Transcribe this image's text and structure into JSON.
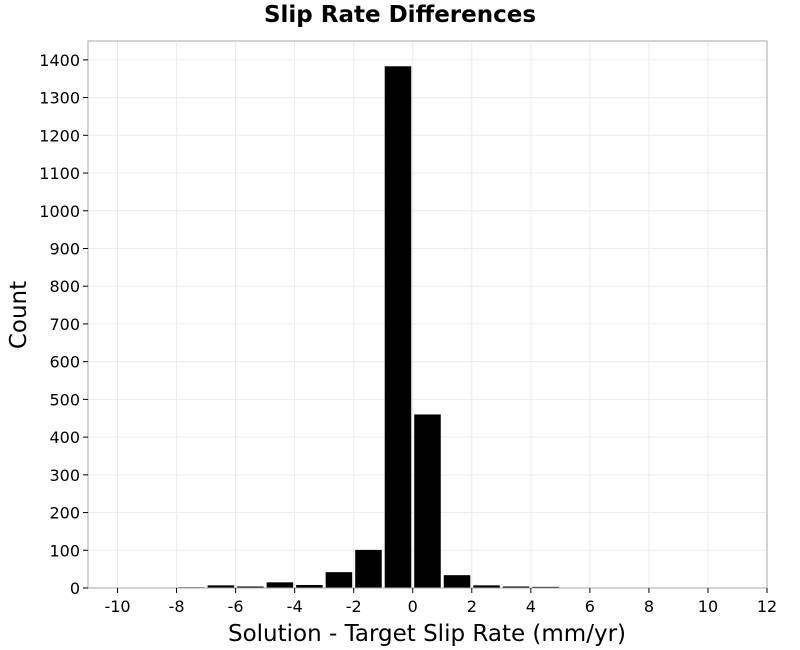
{
  "chart_data": {
    "type": "bar",
    "title": "Slip Rate Differences",
    "xlabel": "Solution - Target Slip Rate (mm/yr)",
    "ylabel": "Count",
    "xlim": [
      -11,
      12
    ],
    "ylim": [
      0,
      1450
    ],
    "x_ticks": [
      -10,
      -8,
      -6,
      -4,
      -2,
      0,
      2,
      4,
      6,
      8,
      10,
      12
    ],
    "y_ticks": [
      0,
      100,
      200,
      300,
      400,
      500,
      600,
      700,
      800,
      900,
      1000,
      1100,
      1200,
      1300,
      1400
    ],
    "bin_width": 1,
    "bins": [
      {
        "x": -10,
        "value": 0
      },
      {
        "x": -9,
        "value": 0
      },
      {
        "x": -8,
        "value": 2
      },
      {
        "x": -7,
        "value": 7
      },
      {
        "x": -6,
        "value": 4
      },
      {
        "x": -5,
        "value": 15
      },
      {
        "x": -4,
        "value": 8
      },
      {
        "x": -3,
        "value": 42
      },
      {
        "x": -2,
        "value": 101
      },
      {
        "x": -1,
        "value": 1383
      },
      {
        "x": 0,
        "value": 460
      },
      {
        "x": 1,
        "value": 34
      },
      {
        "x": 2,
        "value": 7
      },
      {
        "x": 3,
        "value": 4
      },
      {
        "x": 4,
        "value": 3
      },
      {
        "x": 5,
        "value": 0
      },
      {
        "x": 6,
        "value": 1
      },
      {
        "x": 7,
        "value": 0
      },
      {
        "x": 8,
        "value": 0
      },
      {
        "x": 9,
        "value": 0
      },
      {
        "x": 10,
        "value": 0
      }
    ],
    "bar_color": "#000000",
    "grid": true,
    "legend": "none"
  }
}
